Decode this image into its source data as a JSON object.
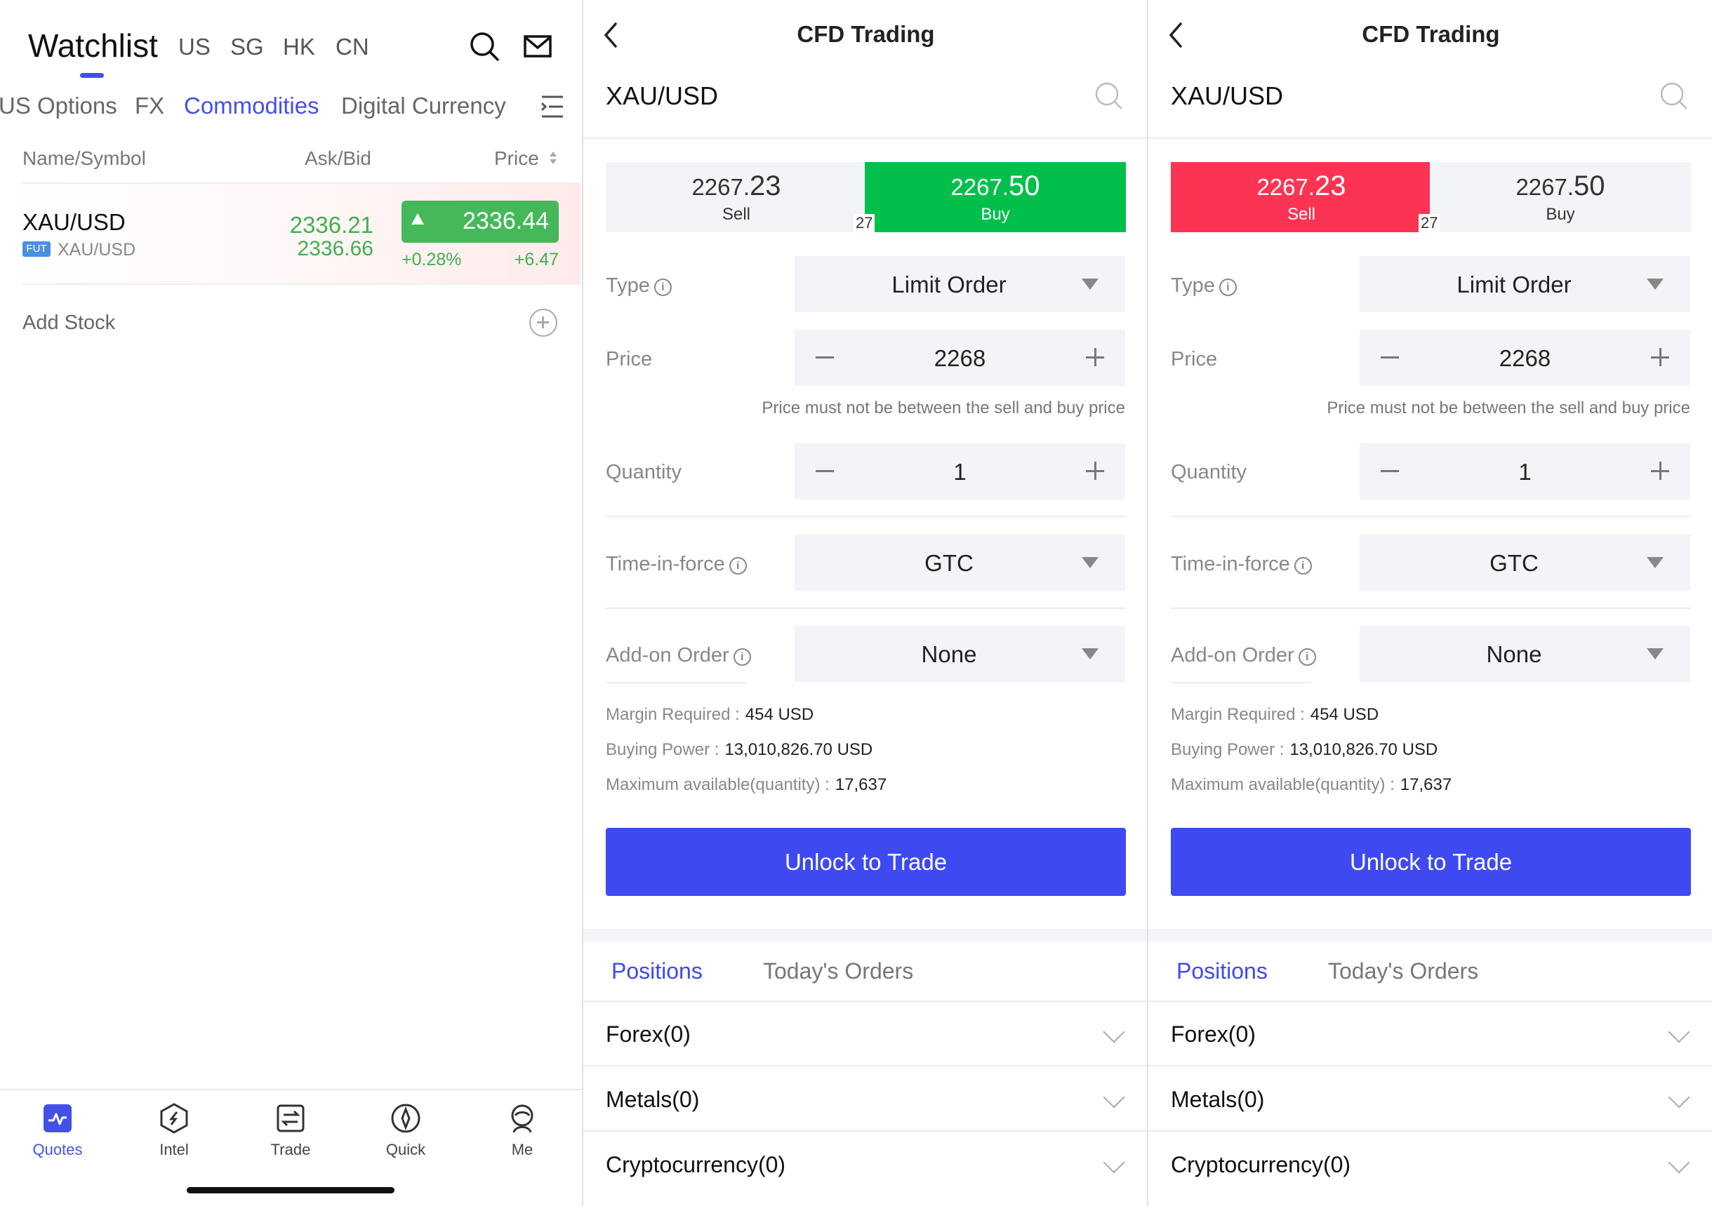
{
  "watchlist": {
    "title": "Watchlist",
    "regions": [
      "US",
      "SG",
      "HK",
      "CN"
    ],
    "categories": [
      "US Options",
      "FX",
      "Commodities",
      "Digital Currency"
    ],
    "active_category": "Commodities",
    "columns": {
      "name": "Name/Symbol",
      "askbid": "Ask/Bid",
      "price": "Price"
    },
    "row": {
      "symbol": "XAU/USD",
      "badge": "FUT",
      "sub_symbol": "XAU/USD",
      "ask": "2336.21",
      "bid": "2336.66",
      "price": "2336.44",
      "change_pct": "+0.28%",
      "change": "+6.47"
    },
    "add_stock": "Add Stock",
    "tabs": [
      {
        "label": "Quotes",
        "icon": "quotes-icon"
      },
      {
        "label": "Intel",
        "icon": "intel-icon"
      },
      {
        "label": "Trade",
        "icon": "trade-icon"
      },
      {
        "label": "Quick",
        "icon": "compass-icon"
      },
      {
        "label": "Me",
        "icon": "profile-icon"
      }
    ],
    "active_tab": "Quotes"
  },
  "trading": {
    "title": "CFD Trading",
    "symbol": "XAU/USD",
    "sell_price_main": "2267.",
    "sell_price_big": "23",
    "buy_price_main": "2267.",
    "buy_price_big": "50",
    "sell_label": "Sell",
    "buy_label": "Buy",
    "spread": "27",
    "type_label": "Type",
    "type_value": "Limit Order",
    "price_label": "Price",
    "price_value": "2268",
    "price_hint": "Price must not be between the sell and buy price",
    "quantity_label": "Quantity",
    "quantity_value": "1",
    "tif_label": "Time-in-force",
    "tif_value": "GTC",
    "addon_label": "Add-on Order",
    "addon_value": "None",
    "margin_label": "Margin Required :",
    "margin_value": "454 USD",
    "bp_label": "Buying Power :",
    "bp_value": "13,010,826.70 USD",
    "max_label": "Maximum available(quantity) :",
    "max_value": "17,637",
    "unlock_label": "Unlock to Trade",
    "positions_tab": "Positions",
    "orders_tab": "Today's Orders",
    "groups": [
      "Forex(0)",
      "Metals(0)",
      "Cryptocurrency(0)"
    ]
  },
  "colors": {
    "accent": "#4350e8",
    "buy_green": "#00c04b",
    "sell_red": "#fb3453",
    "up_green": "#3fb14e"
  },
  "panel_states": {
    "left_panel_side": "buy",
    "right_panel_side": "sell"
  }
}
